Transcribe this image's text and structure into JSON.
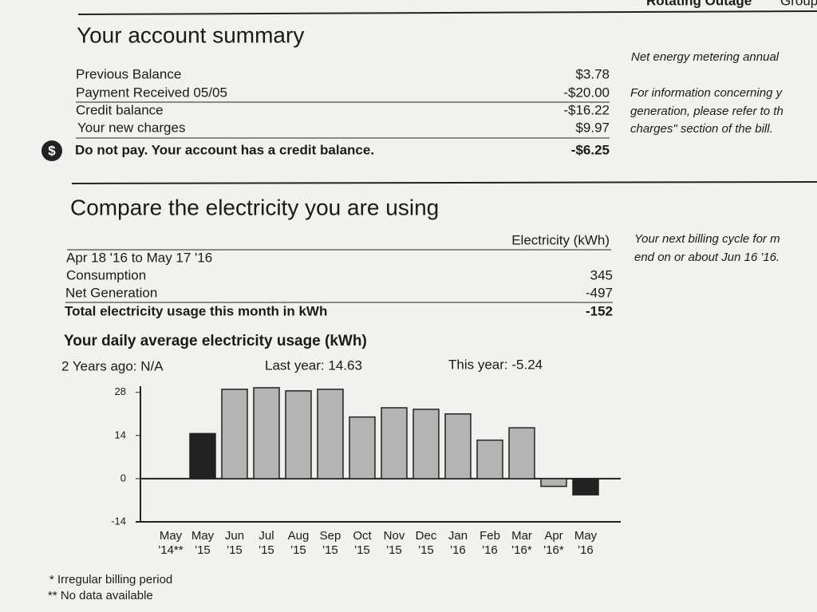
{
  "header": {
    "tabs": [
      "Rotating Outage",
      "Group"
    ]
  },
  "account_summary": {
    "title": "Your account summary",
    "rows": [
      [
        "Previous Balance",
        "$3.78"
      ],
      [
        "Payment Received 05/05",
        "-$20.00"
      ],
      [
        "Credit balance",
        "-$16.22"
      ],
      [
        "Your new charges",
        "$9.97"
      ]
    ],
    "notice": [
      "Do not pay. Your account has a credit balance.",
      "-$6.25"
    ],
    "side_note": [
      "Net energy metering annual",
      "For information concerning y",
      "generation, please refer to th",
      "charges\" section of the bill."
    ]
  },
  "usage": {
    "title": "Compare the electricity you are using",
    "column_header": "Electricity (kWh)",
    "period": "Apr 18 '16 to May 17 '16",
    "rows": [
      [
        "Consumption",
        "345"
      ],
      [
        "Net Generation",
        "-497"
      ]
    ],
    "total": [
      "Total electricity usage this month in kWh",
      "-152"
    ],
    "side_note": [
      "Your next billing cycle for m",
      "end on or about Jun 16 '16."
    ],
    "chart_title": "Your daily average electricity usage (kWh)",
    "comparisons": [
      "2 Years ago: N/A",
      "Last year: 14.63",
      "This year: -5.24"
    ],
    "footnotes": [
      "* Irregular billing period",
      "** No data available"
    ]
  },
  "chart_data": {
    "type": "bar",
    "categories": [
      "May",
      "May",
      "Jun",
      "Jul",
      "Aug",
      "Sep",
      "Oct",
      "Nov",
      "Dec",
      "Jan",
      "Feb",
      "Mar",
      "Apr",
      "May"
    ],
    "category_years": [
      "'14**",
      "'15",
      "'15",
      "'15",
      "'15",
      "'15",
      "'15",
      "'15",
      "'15",
      "'16",
      "'16",
      "'16*",
      "'16*",
      "'16"
    ],
    "values": [
      null,
      14.63,
      29,
      29.5,
      28.5,
      29,
      20,
      23,
      22.5,
      21,
      12.5,
      16.5,
      -2.5,
      -5.24
    ],
    "colors": [
      "#222",
      "#222",
      "#b4b4b4",
      "#b4b4b4",
      "#b4b4b4",
      "#b4b4b4",
      "#b4b4b4",
      "#b4b4b4",
      "#b4b4b4",
      "#b4b4b4",
      "#b4b4b4",
      "#b4b4b4",
      "#b4b4b4",
      "#222"
    ],
    "ylim": [
      -14,
      30
    ],
    "yticks": [
      -14,
      0,
      14,
      28
    ]
  }
}
